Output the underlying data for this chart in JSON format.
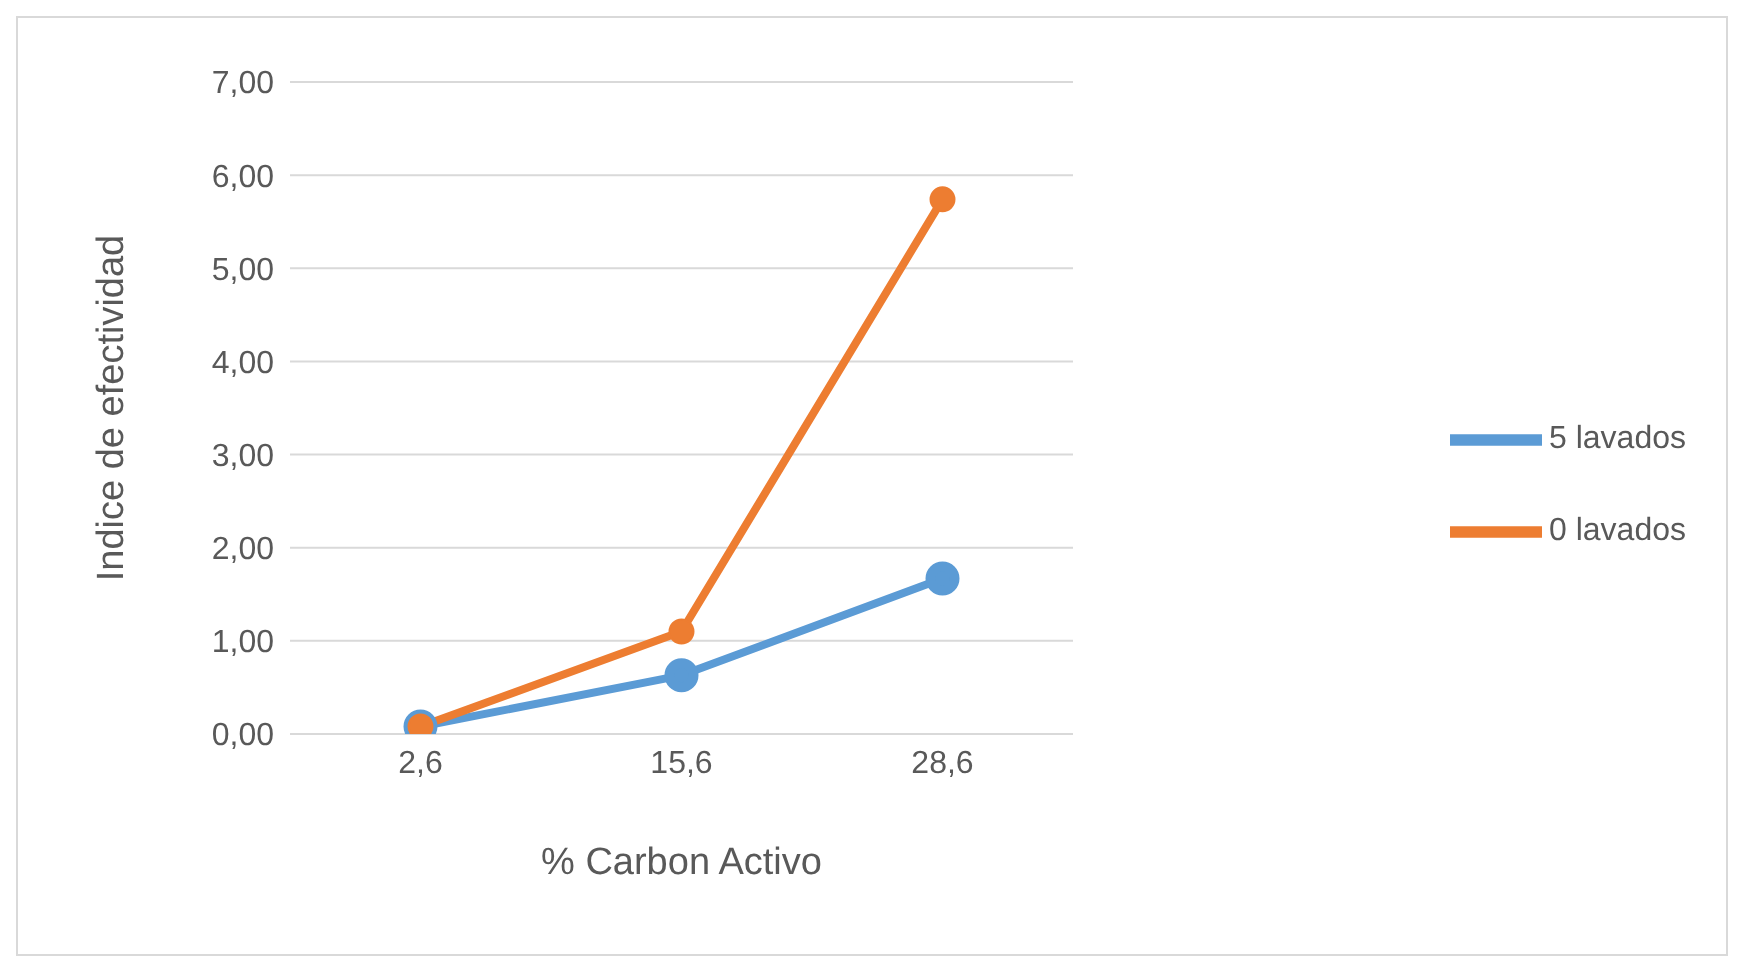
{
  "chart_data": {
    "type": "line",
    "xlabel": "% Carbon Activo",
    "ylabel": "Indice de efectividad",
    "categories": [
      "2,6",
      "15,6",
      "28,6"
    ],
    "series": [
      {
        "name": "5 lavados",
        "color": "#5b9bd5",
        "values": [
          0.08,
          0.63,
          1.67
        ]
      },
      {
        "name": "0 lavados",
        "color": "#ed7d31",
        "values": [
          0.08,
          1.1,
          5.74
        ]
      }
    ],
    "ylim": [
      0,
      7
    ],
    "yticks": [
      {
        "value": 0,
        "label": "0,00"
      },
      {
        "value": 1,
        "label": "1,00"
      },
      {
        "value": 2,
        "label": "2,00"
      },
      {
        "value": 3,
        "label": "3,00"
      },
      {
        "value": 4,
        "label": "4,00"
      },
      {
        "value": 5,
        "label": "5,00"
      },
      {
        "value": 6,
        "label": "6,00"
      },
      {
        "value": 7,
        "label": "7,00"
      }
    ],
    "grid": "y",
    "legend": "right",
    "marker": "circle",
    "line_style": "solid"
  }
}
